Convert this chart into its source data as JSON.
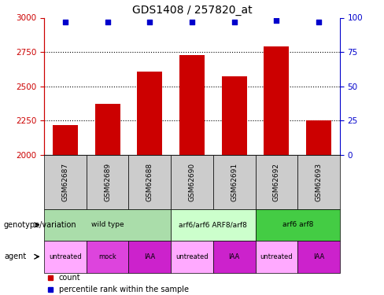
{
  "title": "GDS1408 / 257820_at",
  "samples": [
    "GSM62687",
    "GSM62689",
    "GSM62688",
    "GSM62690",
    "GSM62691",
    "GSM62692",
    "GSM62693"
  ],
  "bar_values": [
    2220,
    2370,
    2610,
    2730,
    2570,
    2790,
    2250
  ],
  "percentile_values": [
    97,
    97,
    97,
    97,
    97,
    98,
    97
  ],
  "bar_color": "#cc0000",
  "percentile_color": "#0000cc",
  "ylim_left": [
    2000,
    3000
  ],
  "ylim_right": [
    0,
    100
  ],
  "yticks_left": [
    2000,
    2250,
    2500,
    2750,
    3000
  ],
  "yticks_right": [
    0,
    25,
    50,
    75,
    100
  ],
  "genotype_groups": [
    {
      "label": "wild type",
      "span": [
        0,
        3
      ],
      "color": "#aaddaa"
    },
    {
      "label": "arf6/arf6 ARF8/arf8",
      "span": [
        3,
        5
      ],
      "color": "#ccffcc"
    },
    {
      "label": "arf6 arf8",
      "span": [
        5,
        7
      ],
      "color": "#44cc44"
    }
  ],
  "agent_groups": [
    {
      "label": "untreated",
      "span": [
        0,
        1
      ],
      "color": "#ffaaff"
    },
    {
      "label": "mock",
      "span": [
        1,
        2
      ],
      "color": "#dd44dd"
    },
    {
      "label": "IAA",
      "span": [
        2,
        3
      ],
      "color": "#cc22cc"
    },
    {
      "label": "untreated",
      "span": [
        3,
        4
      ],
      "color": "#ffaaff"
    },
    {
      "label": "IAA",
      "span": [
        4,
        5
      ],
      "color": "#cc22cc"
    },
    {
      "label": "untreated",
      "span": [
        5,
        6
      ],
      "color": "#ffaaff"
    },
    {
      "label": "IAA",
      "span": [
        6,
        7
      ],
      "color": "#cc22cc"
    }
  ],
  "legend_items": [
    {
      "label": "count",
      "color": "#cc0000"
    },
    {
      "label": "percentile rank within the sample",
      "color": "#0000cc"
    }
  ],
  "sample_box_color": "#cccccc",
  "left_labels": [
    {
      "text": "genotype/variation",
      "row": "geno"
    },
    {
      "text": "agent",
      "row": "agent"
    }
  ]
}
